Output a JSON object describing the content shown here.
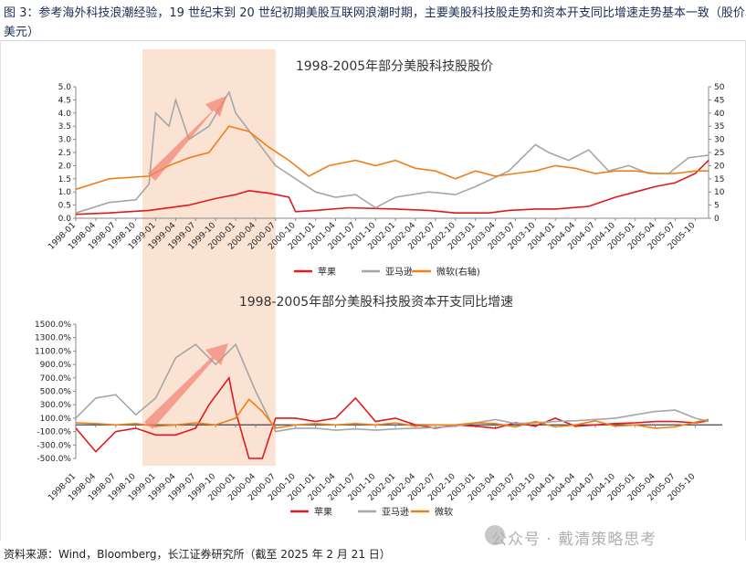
{
  "header": {
    "line1": "图 3：参考海外科技浪潮经验，19 世纪末到 20 世纪初期美股互联网浪潮时期，主要美股科技股走势和资本开支同比增速走势基本一致（股价单位：",
    "line2": "美元）"
  },
  "footer": {
    "source": "资料来源：Wind，Bloomberg，长江证券研究所（截至 2025 年 2 月 21 日）"
  },
  "watermark": {
    "text": "公众号 · 戴清策略思考"
  },
  "colors": {
    "apple": "#e0191c",
    "amazon": "#a6a6a6",
    "microsoft": "#f07f18",
    "shade": "#fbe3d3",
    "arrow": "#f08070"
  },
  "chart_data": [
    {
      "type": "line",
      "title": "1998-2005年部分美股科技股股价",
      "x_tick_labels": [
        "1998-01",
        "1998-04",
        "1998-07",
        "1998-10",
        "1999-01",
        "1999-04",
        "1999-07",
        "1999-10",
        "2000-01",
        "2000-04",
        "2000-07",
        "2000-10",
        "2001-01",
        "2001-04",
        "2001-07",
        "2001-10",
        "2002-01",
        "2002-04",
        "2002-07",
        "2002-10",
        "2003-01",
        "2003-04",
        "2003-07",
        "2003-10",
        "2004-01",
        "2004-04",
        "2004-07",
        "2004-10",
        "2005-01",
        "2005-04",
        "2005-07",
        "2005-10"
      ],
      "x_range": [
        "1998-01",
        "2005-12"
      ],
      "y_left": {
        "range": [
          0,
          5
        ],
        "ticks": [
          "0.0",
          "0.5",
          "1.0",
          "1.5",
          "2.0",
          "2.5",
          "3.0",
          "3.5",
          "4.0",
          "4.5",
          "5.0"
        ]
      },
      "y_right": {
        "range": [
          0,
          50
        ],
        "ticks": [
          "0",
          "5",
          "10",
          "15",
          "20",
          "25",
          "30",
          "35",
          "40",
          "45",
          "50"
        ]
      },
      "highlight": {
        "from": "1998-11",
        "to": "2000-07"
      },
      "legend_position": "bottom",
      "series": [
        {
          "name": "苹果",
          "axis": "left",
          "color": "#e0191c",
          "x": [
            "1998-01",
            "1998-06",
            "1998-12",
            "1999-06",
            "1999-10",
            "2000-01",
            "2000-03",
            "2000-06",
            "2000-09",
            "2000-10",
            "2001-01",
            "2001-06",
            "2002-01",
            "2002-06",
            "2002-10",
            "2003-03",
            "2003-06",
            "2003-10",
            "2004-01",
            "2004-06",
            "2004-10",
            "2005-01",
            "2005-04",
            "2005-07",
            "2005-10",
            "2005-12"
          ],
          "y": [
            0.15,
            0.2,
            0.3,
            0.5,
            0.75,
            0.9,
            1.05,
            0.95,
            0.8,
            0.25,
            0.3,
            0.4,
            0.35,
            0.3,
            0.2,
            0.2,
            0.3,
            0.35,
            0.35,
            0.45,
            0.8,
            1.0,
            1.2,
            1.35,
            1.7,
            2.2
          ]
        },
        {
          "name": "亚马逊",
          "axis": "right",
          "color": "#a6a6a6",
          "x": [
            "1998-01",
            "1998-06",
            "1998-10",
            "1998-12",
            "1999-01",
            "1999-03",
            "1999-04",
            "1999-06",
            "1999-09",
            "1999-12",
            "2000-01",
            "2000-04",
            "2000-07",
            "2000-10",
            "2001-01",
            "2001-04",
            "2001-07",
            "2001-10",
            "2002-01",
            "2002-06",
            "2002-10",
            "2003-01",
            "2003-06",
            "2003-10",
            "2003-12",
            "2004-03",
            "2004-06",
            "2004-09",
            "2004-12",
            "2005-03",
            "2005-06",
            "2005-09",
            "2005-12"
          ],
          "y": [
            2,
            6,
            7,
            13,
            40,
            35,
            45,
            30,
            35,
            48,
            40,
            30,
            20,
            15,
            10,
            8,
            9,
            4,
            8,
            10,
            9,
            12,
            18,
            28,
            25,
            22,
            26,
            18,
            20,
            17,
            17,
            23,
            24
          ]
        },
        {
          "name": "微软(右轴)",
          "axis": "right",
          "color": "#f07f18",
          "x": [
            "1998-01",
            "1998-06",
            "1998-12",
            "1999-03",
            "1999-06",
            "1999-09",
            "1999-12",
            "2000-03",
            "2000-06",
            "2000-09",
            "2000-12",
            "2001-03",
            "2001-07",
            "2001-10",
            "2002-01",
            "2002-04",
            "2002-07",
            "2002-10",
            "2003-01",
            "2003-04",
            "2003-07",
            "2003-10",
            "2004-01",
            "2004-04",
            "2004-07",
            "2004-10",
            "2005-01",
            "2005-04",
            "2005-07",
            "2005-10",
            "2005-12"
          ],
          "y": [
            11,
            15,
            16,
            20,
            23,
            25,
            35,
            33,
            27,
            22,
            16,
            20,
            22,
            20,
            22,
            19,
            18,
            15,
            18,
            16,
            17,
            18,
            20,
            19,
            17,
            18,
            18,
            17,
            17,
            18,
            18
          ]
        }
      ]
    },
    {
      "type": "line",
      "title": "1998-2005年部分美股科技股资本开支同比增速",
      "x_tick_labels": [
        "1998-01",
        "1998-04",
        "1998-07",
        "1998-10",
        "1999-01",
        "1999-04",
        "1999-07",
        "1999-10",
        "2000-01",
        "2000-04",
        "2000-07",
        "2000-10",
        "2001-01",
        "2001-04",
        "2001-07",
        "2001-10",
        "2002-01",
        "2002-04",
        "2002-07",
        "2002-10",
        "2003-01",
        "2003-04",
        "2003-07",
        "2003-10",
        "2004-01",
        "2004-04",
        "2004-07",
        "2004-10",
        "2005-01",
        "2005-04",
        "2005-07",
        "2005-10"
      ],
      "x_range": [
        "1998-01",
        "2005-12"
      ],
      "y": {
        "range": [
          -500,
          1500
        ],
        "ticks": [
          "-500.0%",
          "-300.0%",
          "-100.0%",
          "100.0%",
          "300.0%",
          "500.0%",
          "700.0%",
          "900.0%",
          "1100.0%",
          "1300.0%",
          "1500.0%"
        ]
      },
      "highlight": {
        "from": "1998-11",
        "to": "2000-07"
      },
      "legend_position": "bottom",
      "series": [
        {
          "name": "苹果",
          "color": "#e0191c",
          "x": [
            "1998-01",
            "1998-04",
            "1998-07",
            "1998-10",
            "1999-01",
            "1999-04",
            "1999-07",
            "1999-09",
            "1999-12",
            "2000-01",
            "2000-03",
            "2000-05",
            "2000-07",
            "2000-10",
            "2001-01",
            "2001-04",
            "2001-07",
            "2001-10",
            "2002-01",
            "2002-04",
            "2002-07",
            "2002-10",
            "2003-01",
            "2003-04",
            "2003-07",
            "2003-10",
            "2004-01",
            "2004-04",
            "2004-07",
            "2004-10",
            "2005-01",
            "2005-04",
            "2005-07",
            "2005-10",
            "2005-12"
          ],
          "y": [
            -50,
            -400,
            -100,
            -50,
            -150,
            -150,
            -50,
            300,
            700,
            200,
            -500,
            -500,
            100,
            100,
            50,
            100,
            400,
            50,
            100,
            0,
            -50,
            0,
            -20,
            -50,
            30,
            -20,
            100,
            -20,
            0,
            20,
            30,
            50,
            50,
            30,
            60
          ]
        },
        {
          "name": "亚马逊",
          "color": "#a6a6a6",
          "x": [
            "1998-01",
            "1998-04",
            "1998-07",
            "1998-10",
            "1999-01",
            "1999-04",
            "1999-07",
            "1999-10",
            "2000-01",
            "2000-04",
            "2000-07",
            "2000-10",
            "2001-01",
            "2001-04",
            "2001-07",
            "2001-10",
            "2002-01",
            "2002-04",
            "2002-07",
            "2002-10",
            "2003-01",
            "2003-04",
            "2003-07",
            "2003-10",
            "2004-01",
            "2004-04",
            "2004-07",
            "2004-10",
            "2005-01",
            "2005-04",
            "2005-07",
            "2005-10",
            "2005-12"
          ],
          "y": [
            100,
            400,
            450,
            150,
            400,
            1000,
            1200,
            900,
            1200,
            500,
            -100,
            -50,
            -50,
            -80,
            -60,
            -80,
            -60,
            -50,
            -40,
            -20,
            30,
            80,
            20,
            30,
            50,
            60,
            80,
            100,
            150,
            200,
            220,
            100,
            50
          ]
        },
        {
          "name": "微软",
          "color": "#f07f18",
          "x": [
            "1998-01",
            "1998-04",
            "1998-07",
            "1998-10",
            "1999-01",
            "1999-04",
            "1999-07",
            "1999-10",
            "2000-01",
            "2000-03",
            "2000-05",
            "2000-07",
            "2000-10",
            "2001-01",
            "2001-04",
            "2001-07",
            "2001-10",
            "2002-01",
            "2002-04",
            "2002-07",
            "2002-10",
            "2003-01",
            "2003-04",
            "2003-07",
            "2003-10",
            "2004-01",
            "2004-04",
            "2004-07",
            "2004-10",
            "2005-01",
            "2005-04",
            "2005-07",
            "2005-10",
            "2005-12"
          ],
          "y": [
            30,
            20,
            0,
            20,
            -20,
            0,
            30,
            0,
            100,
            380,
            200,
            -50,
            0,
            20,
            0,
            20,
            0,
            30,
            -20,
            0,
            0,
            30,
            20,
            -30,
            50,
            -30,
            0,
            60,
            -20,
            0,
            -50,
            -30,
            40,
            80
          ]
        }
      ]
    }
  ]
}
